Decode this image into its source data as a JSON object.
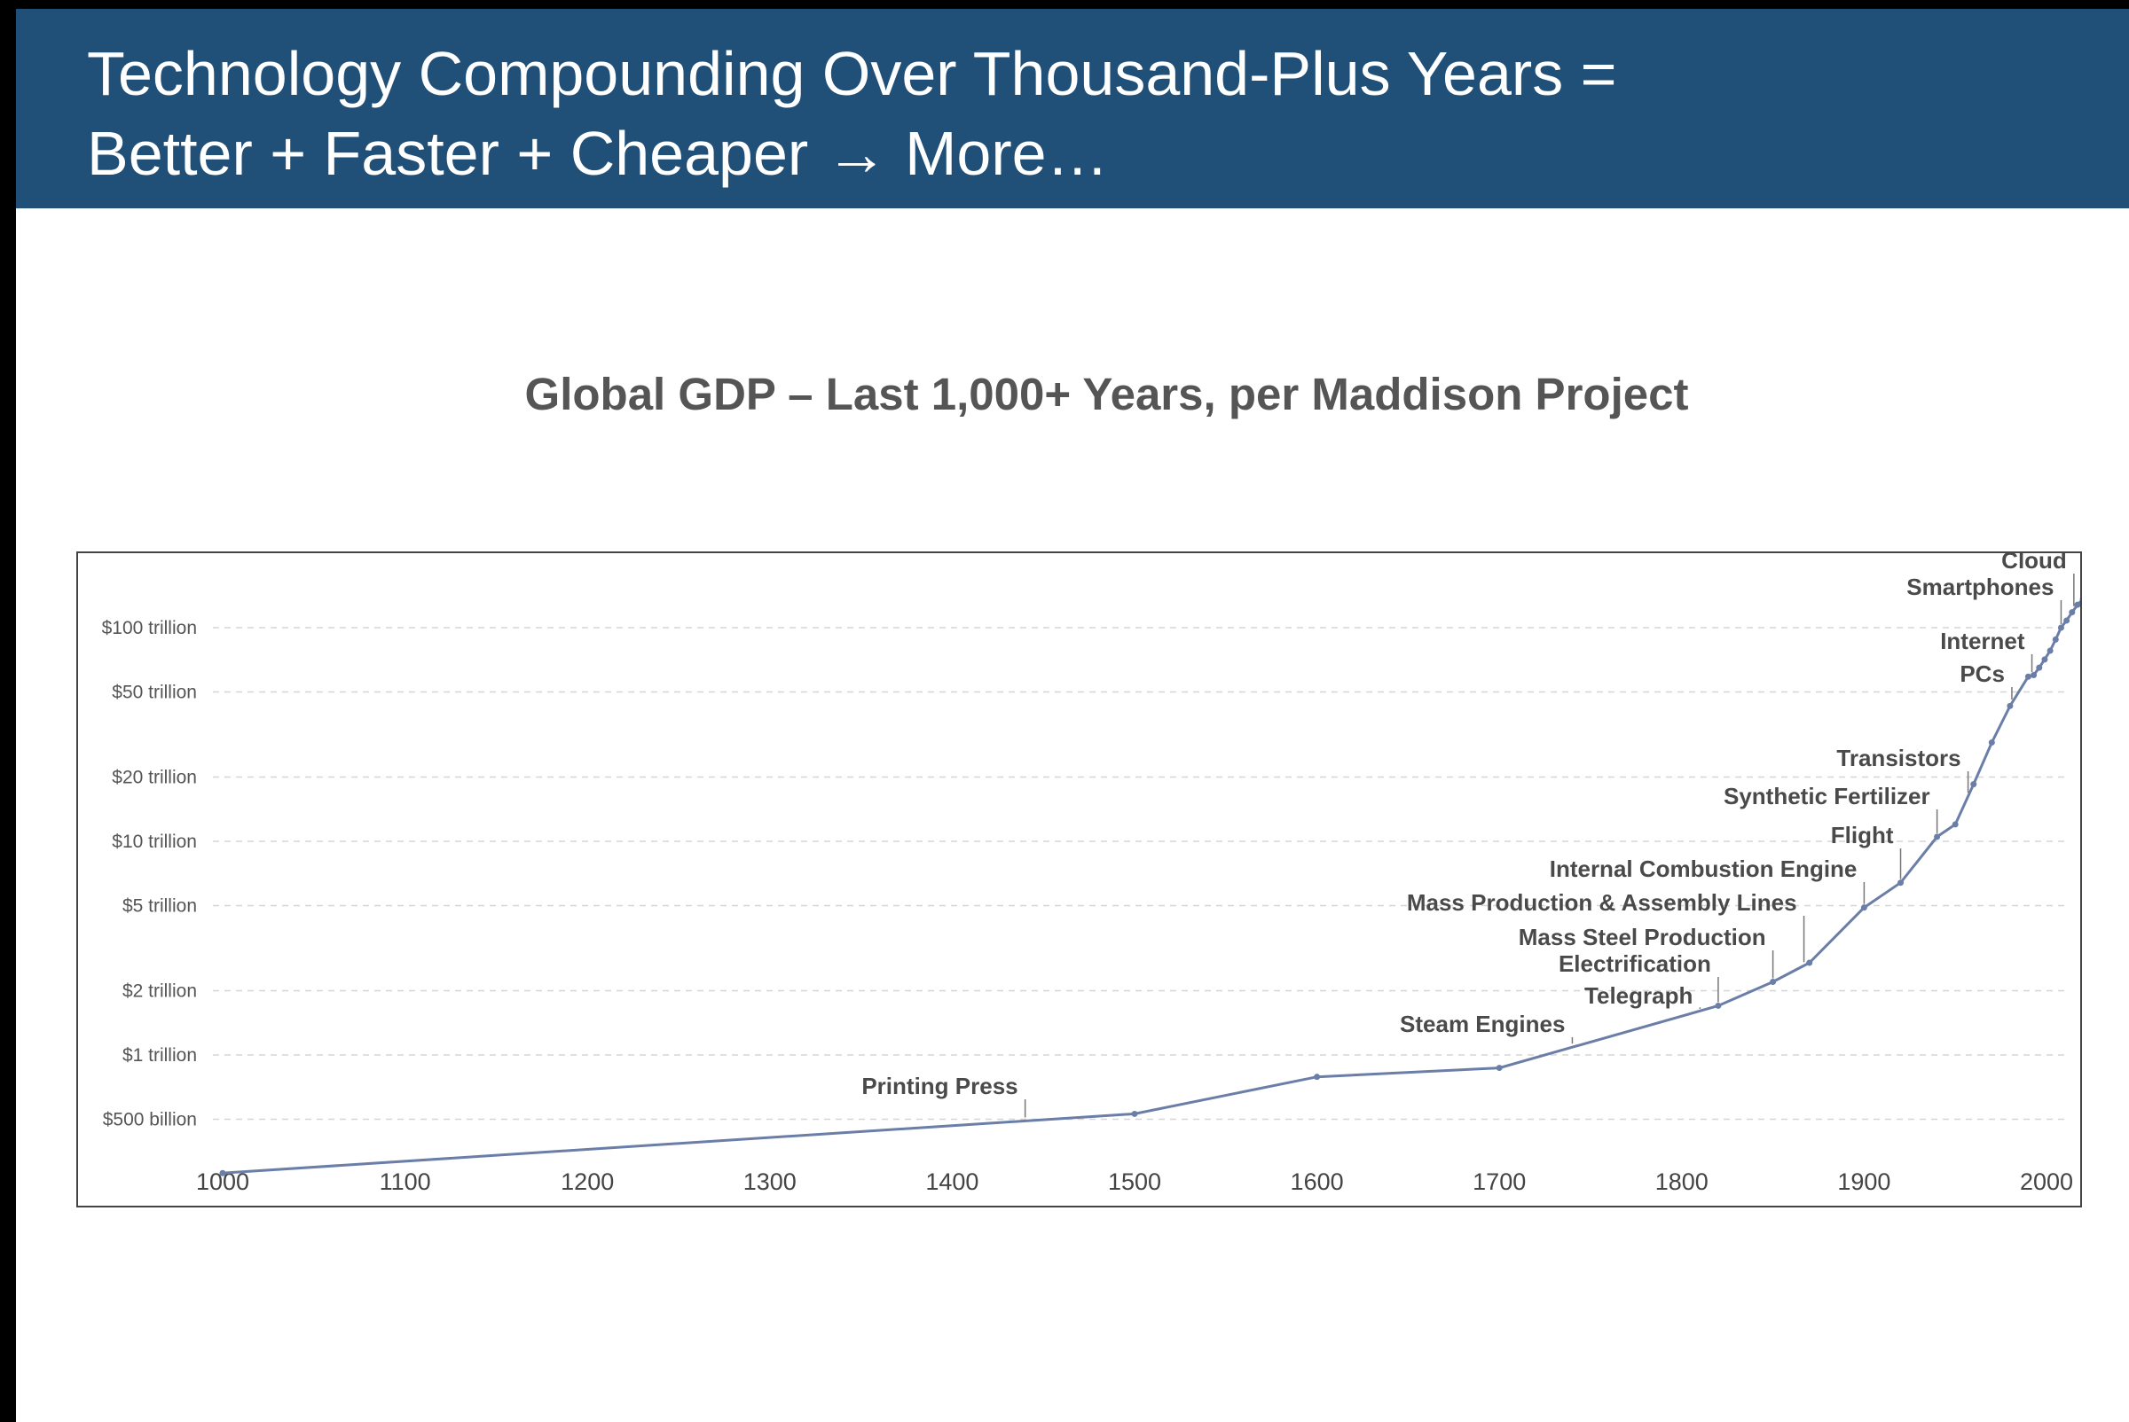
{
  "slide": {
    "title": "Technology Compounding Over Thousand-Plus Years =\nBetter + Faster + Cheaper → More…",
    "header_color": "#204f77"
  },
  "chart_data": {
    "type": "line",
    "title": "Global GDP – Last 1,000+ Years, per Maddison Project",
    "xlabel": "",
    "ylabel": "",
    "y_scale": "log",
    "grid": "horizontal dashed",
    "line_color": "#6b7ea8",
    "xlim": [
      1000,
      2020
    ],
    "ylim": [
      0.23,
      150
    ],
    "x_ticks": [
      1000,
      1100,
      1200,
      1300,
      1400,
      1500,
      1600,
      1700,
      1800,
      1900,
      2000
    ],
    "y_ticks": [
      {
        "value": 0.5,
        "label": "$500 billion"
      },
      {
        "value": 1,
        "label": "$1 trillion"
      },
      {
        "value": 2,
        "label": "$2 trillion"
      },
      {
        "value": 5,
        "label": "$5 trillion"
      },
      {
        "value": 10,
        "label": "$10 trillion"
      },
      {
        "value": 20,
        "label": "$20 trillion"
      },
      {
        "value": 50,
        "label": "$50 trillion"
      },
      {
        "value": 100,
        "label": "$100 trillion"
      }
    ],
    "series": [
      {
        "unit": "trillion USD",
        "points": [
          [
            1000,
            0.28
          ],
          [
            1500,
            0.53
          ],
          [
            1600,
            0.79
          ],
          [
            1700,
            0.87
          ],
          [
            1820,
            1.7
          ],
          [
            1850,
            2.2
          ],
          [
            1870,
            2.7
          ],
          [
            1900,
            4.9
          ],
          [
            1920,
            6.4
          ],
          [
            1940,
            10.5
          ],
          [
            1950,
            12.0
          ],
          [
            1960,
            18.5
          ],
          [
            1970,
            29
          ],
          [
            1980,
            43
          ],
          [
            1990,
            59
          ],
          [
            1993,
            60
          ],
          [
            1996,
            65
          ],
          [
            1999,
            71
          ],
          [
            2002,
            78
          ],
          [
            2005,
            88
          ],
          [
            2008,
            100
          ],
          [
            2011,
            108
          ],
          [
            2014,
            118
          ],
          [
            2017,
            128
          ],
          [
            2020,
            136
          ],
          [
            2022,
            145
          ]
        ]
      }
    ],
    "annotations": [
      {
        "label": "Printing Press",
        "year": 1440
      },
      {
        "label": "Steam Engines",
        "year": 1740
      },
      {
        "label": "Telegraph",
        "year": 1810
      },
      {
        "label": "Electrification",
        "year": 1820
      },
      {
        "label": "Mass Steel Production",
        "year": 1850
      },
      {
        "label": "Mass Production & Assembly Lines",
        "year": 1867
      },
      {
        "label": "Internal Combustion Engine",
        "year": 1900
      },
      {
        "label": "Flight",
        "year": 1920
      },
      {
        "label": "Synthetic Fertilizer",
        "year": 1940
      },
      {
        "label": "Transistors",
        "year": 1957
      },
      {
        "label": "PCs",
        "year": 1981
      },
      {
        "label": "Internet",
        "year": 1992
      },
      {
        "label": "Smartphones",
        "year": 2008
      },
      {
        "label": "Cloud",
        "year": 2015
      }
    ]
  }
}
